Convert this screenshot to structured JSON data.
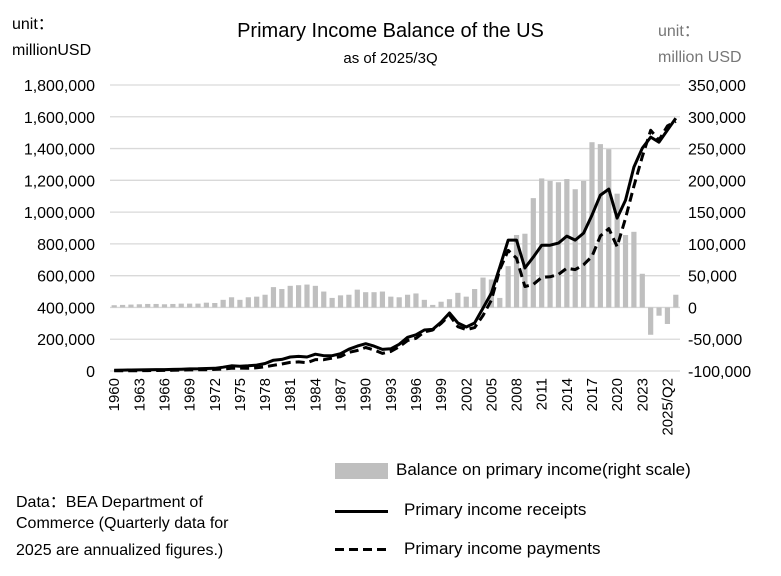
{
  "chart_data": {
    "type": "bar+line",
    "title": "Primary Income Balance of the US",
    "subtitle": "as of 2025/3Q",
    "left_unit_label": "unit：",
    "left_unit_value": "millionUSD",
    "right_unit_label": "unit：",
    "right_unit_value": "million USD",
    "left_axis": {
      "min": 0,
      "max": 1800000,
      "step": 200000,
      "tick_labels": [
        "0",
        "200,000",
        "400,000",
        "600,000",
        "800,000",
        "1,000,000",
        "1,200,000",
        "1,400,000",
        "1,600,000",
        "1,800,000"
      ]
    },
    "right_axis": {
      "min": -100000,
      "max": 350000,
      "step": 50000,
      "tick_labels": [
        "-100,000",
        "-50,000",
        "0",
        "50,000",
        "100,000",
        "150,000",
        "200,000",
        "250,000",
        "300,000",
        "350,000"
      ]
    },
    "categories": [
      "1960",
      "1961",
      "1962",
      "1963",
      "1964",
      "1965",
      "1966",
      "1967",
      "1968",
      "1969",
      "1970",
      "1971",
      "1972",
      "1973",
      "1974",
      "1975",
      "1976",
      "1977",
      "1978",
      "1979",
      "1980",
      "1981",
      "1982",
      "1983",
      "1984",
      "1985",
      "1986",
      "1987",
      "1988",
      "1989",
      "1990",
      "1991",
      "1992",
      "1993",
      "1994",
      "1995",
      "1996",
      "1997",
      "1998",
      "1999",
      "2000",
      "2001",
      "2002",
      "2003",
      "2004",
      "2005",
      "2006",
      "2007",
      "2008",
      "2009",
      "2010",
      "2011",
      "2012",
      "2013",
      "2014",
      "2015",
      "2016",
      "2017",
      "2018",
      "2019",
      "2020",
      "2021",
      "2022",
      "2023",
      "2024",
      "2025/Q1",
      "2025/Q2",
      "2025/Q3"
    ],
    "x_tick_labels": [
      "1960",
      "1963",
      "1966",
      "1969",
      "1972",
      "1975",
      "1978",
      "1981",
      "1984",
      "1987",
      "1990",
      "1993",
      "1996",
      "1999",
      "2002",
      "2005",
      "2008",
      "2011",
      "2014",
      "2017",
      "2020",
      "2023",
      "2025/Q2"
    ],
    "series": [
      {
        "name": "Balance on primary income(right scale)",
        "type": "bar",
        "axis": "right",
        "color": "#bfbfbf",
        "values": [
          3500,
          4000,
          4500,
          5000,
          5500,
          5500,
          5000,
          5500,
          6000,
          6000,
          6000,
          7500,
          7000,
          12000,
          16000,
          12000,
          16000,
          17000,
          20000,
          32000,
          29000,
          34000,
          35000,
          36000,
          34000,
          25000,
          15000,
          19000,
          20000,
          28000,
          24000,
          24000,
          25000,
          17000,
          16000,
          20000,
          22000,
          12000,
          4000,
          9000,
          13000,
          23000,
          17000,
          29000,
          47000,
          44000,
          15000,
          65000,
          114000,
          116000,
          172000,
          203000,
          199000,
          197000,
          202000,
          186000,
          199000,
          260000,
          257000,
          249000,
          179000,
          114000,
          119000,
          53000,
          -43000,
          -13000,
          -26000,
          20000
        ]
      },
      {
        "name": "Primary income receipts",
        "type": "line",
        "axis": "left",
        "color": "#000000",
        "style": "solid",
        "values": [
          5000,
          5500,
          6500,
          7000,
          8000,
          8500,
          9000,
          10000,
          11500,
          13000,
          14000,
          15500,
          17000,
          24000,
          33000,
          30000,
          33000,
          37000,
          47000,
          68000,
          73000,
          88000,
          92000,
          88000,
          106000,
          96000,
          96000,
          109000,
          137000,
          157000,
          172000,
          157000,
          136000,
          140000,
          168000,
          212000,
          228000,
          258000,
          262000,
          308000,
          365000,
          302000,
          277000,
          302000,
          396000,
          490000,
          654000,
          824000,
          824000,
          648000,
          717000,
          792000,
          792000,
          805000,
          849000,
          824000,
          868000,
          981000,
          1107000,
          1145000,
          962000,
          1075000,
          1283000,
          1402000,
          1472000,
          1440000,
          1516000,
          1591000
        ]
      },
      {
        "name": "Primary income payments",
        "type": "line",
        "axis": "left",
        "color": "#000000",
        "style": "dashed",
        "values": [
          1500,
          1500,
          2000,
          2000,
          2500,
          3000,
          4000,
          4500,
          5500,
          7000,
          8000,
          8000,
          10000,
          12000,
          17000,
          18000,
          17000,
          20000,
          27000,
          36000,
          44000,
          54000,
          57000,
          52000,
          72000,
          71000,
          81000,
          90000,
          117000,
          129000,
          148000,
          133000,
          111000,
          123000,
          152000,
          192000,
          206000,
          246000,
          258000,
          299000,
          352000,
          279000,
          260000,
          273000,
          349000,
          446000,
          639000,
          759000,
          710000,
          532000,
          545000,
          589000,
          593000,
          608000,
          647000,
          638000,
          669000,
          721000,
          850000,
          896000,
          783000,
          961000,
          1164000,
          1349000,
          1515000,
          1453000,
          1542000,
          1571000
        ]
      }
    ],
    "grid": true,
    "legend_position": "bottom-right"
  },
  "note": {
    "line1": "Data：BEA Department of",
    "line2": "Commerce (Quarterly data for",
    "line3": "2025 are annualized figures.)"
  }
}
